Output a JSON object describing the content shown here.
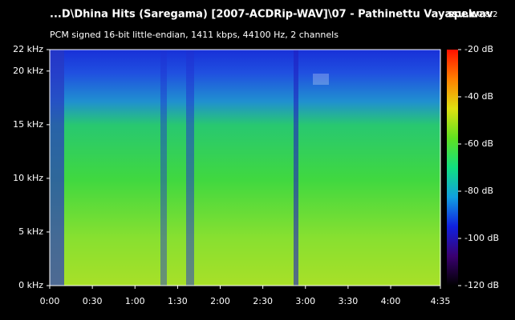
{
  "chart_data": {
    "type": "spectrogram",
    "title": "...D\\Dhina Hits (Saregama) [2007-ACDRip-WAV]\\07 - Pathinettu Vayasu.wav",
    "subtitle": "PCM signed 16-bit little-endian, 1411 kbps, 44100 Hz, 2 channels",
    "app_name": "spek",
    "app_version": "0.8.2",
    "xlim": [
      0,
      275
    ],
    "xticks": [
      {
        "value": 0,
        "label": "0:00"
      },
      {
        "value": 30,
        "label": "0:30"
      },
      {
        "value": 60,
        "label": "1:00"
      },
      {
        "value": 90,
        "label": "1:30"
      },
      {
        "value": 120,
        "label": "2:00"
      },
      {
        "value": 150,
        "label": "2:30"
      },
      {
        "value": 180,
        "label": "3:00"
      },
      {
        "value": 210,
        "label": "3:30"
      },
      {
        "value": 240,
        "label": "4:00"
      },
      {
        "value": 275,
        "label": "4:35"
      }
    ],
    "ylim": [
      0,
      22
    ],
    "yticks": [
      {
        "value": 0,
        "label": "0 kHz"
      },
      {
        "value": 5,
        "label": "5 kHz"
      },
      {
        "value": 10,
        "label": "10 kHz"
      },
      {
        "value": 15,
        "label": "15 kHz"
      },
      {
        "value": 20,
        "label": "20 kHz"
      },
      {
        "value": 22,
        "label": "22 kHz"
      }
    ],
    "zlim": [
      -120,
      -20
    ],
    "zticks": [
      {
        "value": -20,
        "label": "-20 dB"
      },
      {
        "value": -40,
        "label": "-40 dB"
      },
      {
        "value": -60,
        "label": "-60 dB"
      },
      {
        "value": -80,
        "label": "-80 dB"
      },
      {
        "value": -100,
        "label": "-100 dB"
      },
      {
        "value": -120,
        "label": "-120 dB"
      }
    ],
    "colormap": [
      "#000000",
      "#3a0070",
      "#1020e0",
      "#10a0e0",
      "#10e080",
      "#60e020",
      "#e0e010",
      "#ff8000",
      "#ff1000"
    ]
  }
}
